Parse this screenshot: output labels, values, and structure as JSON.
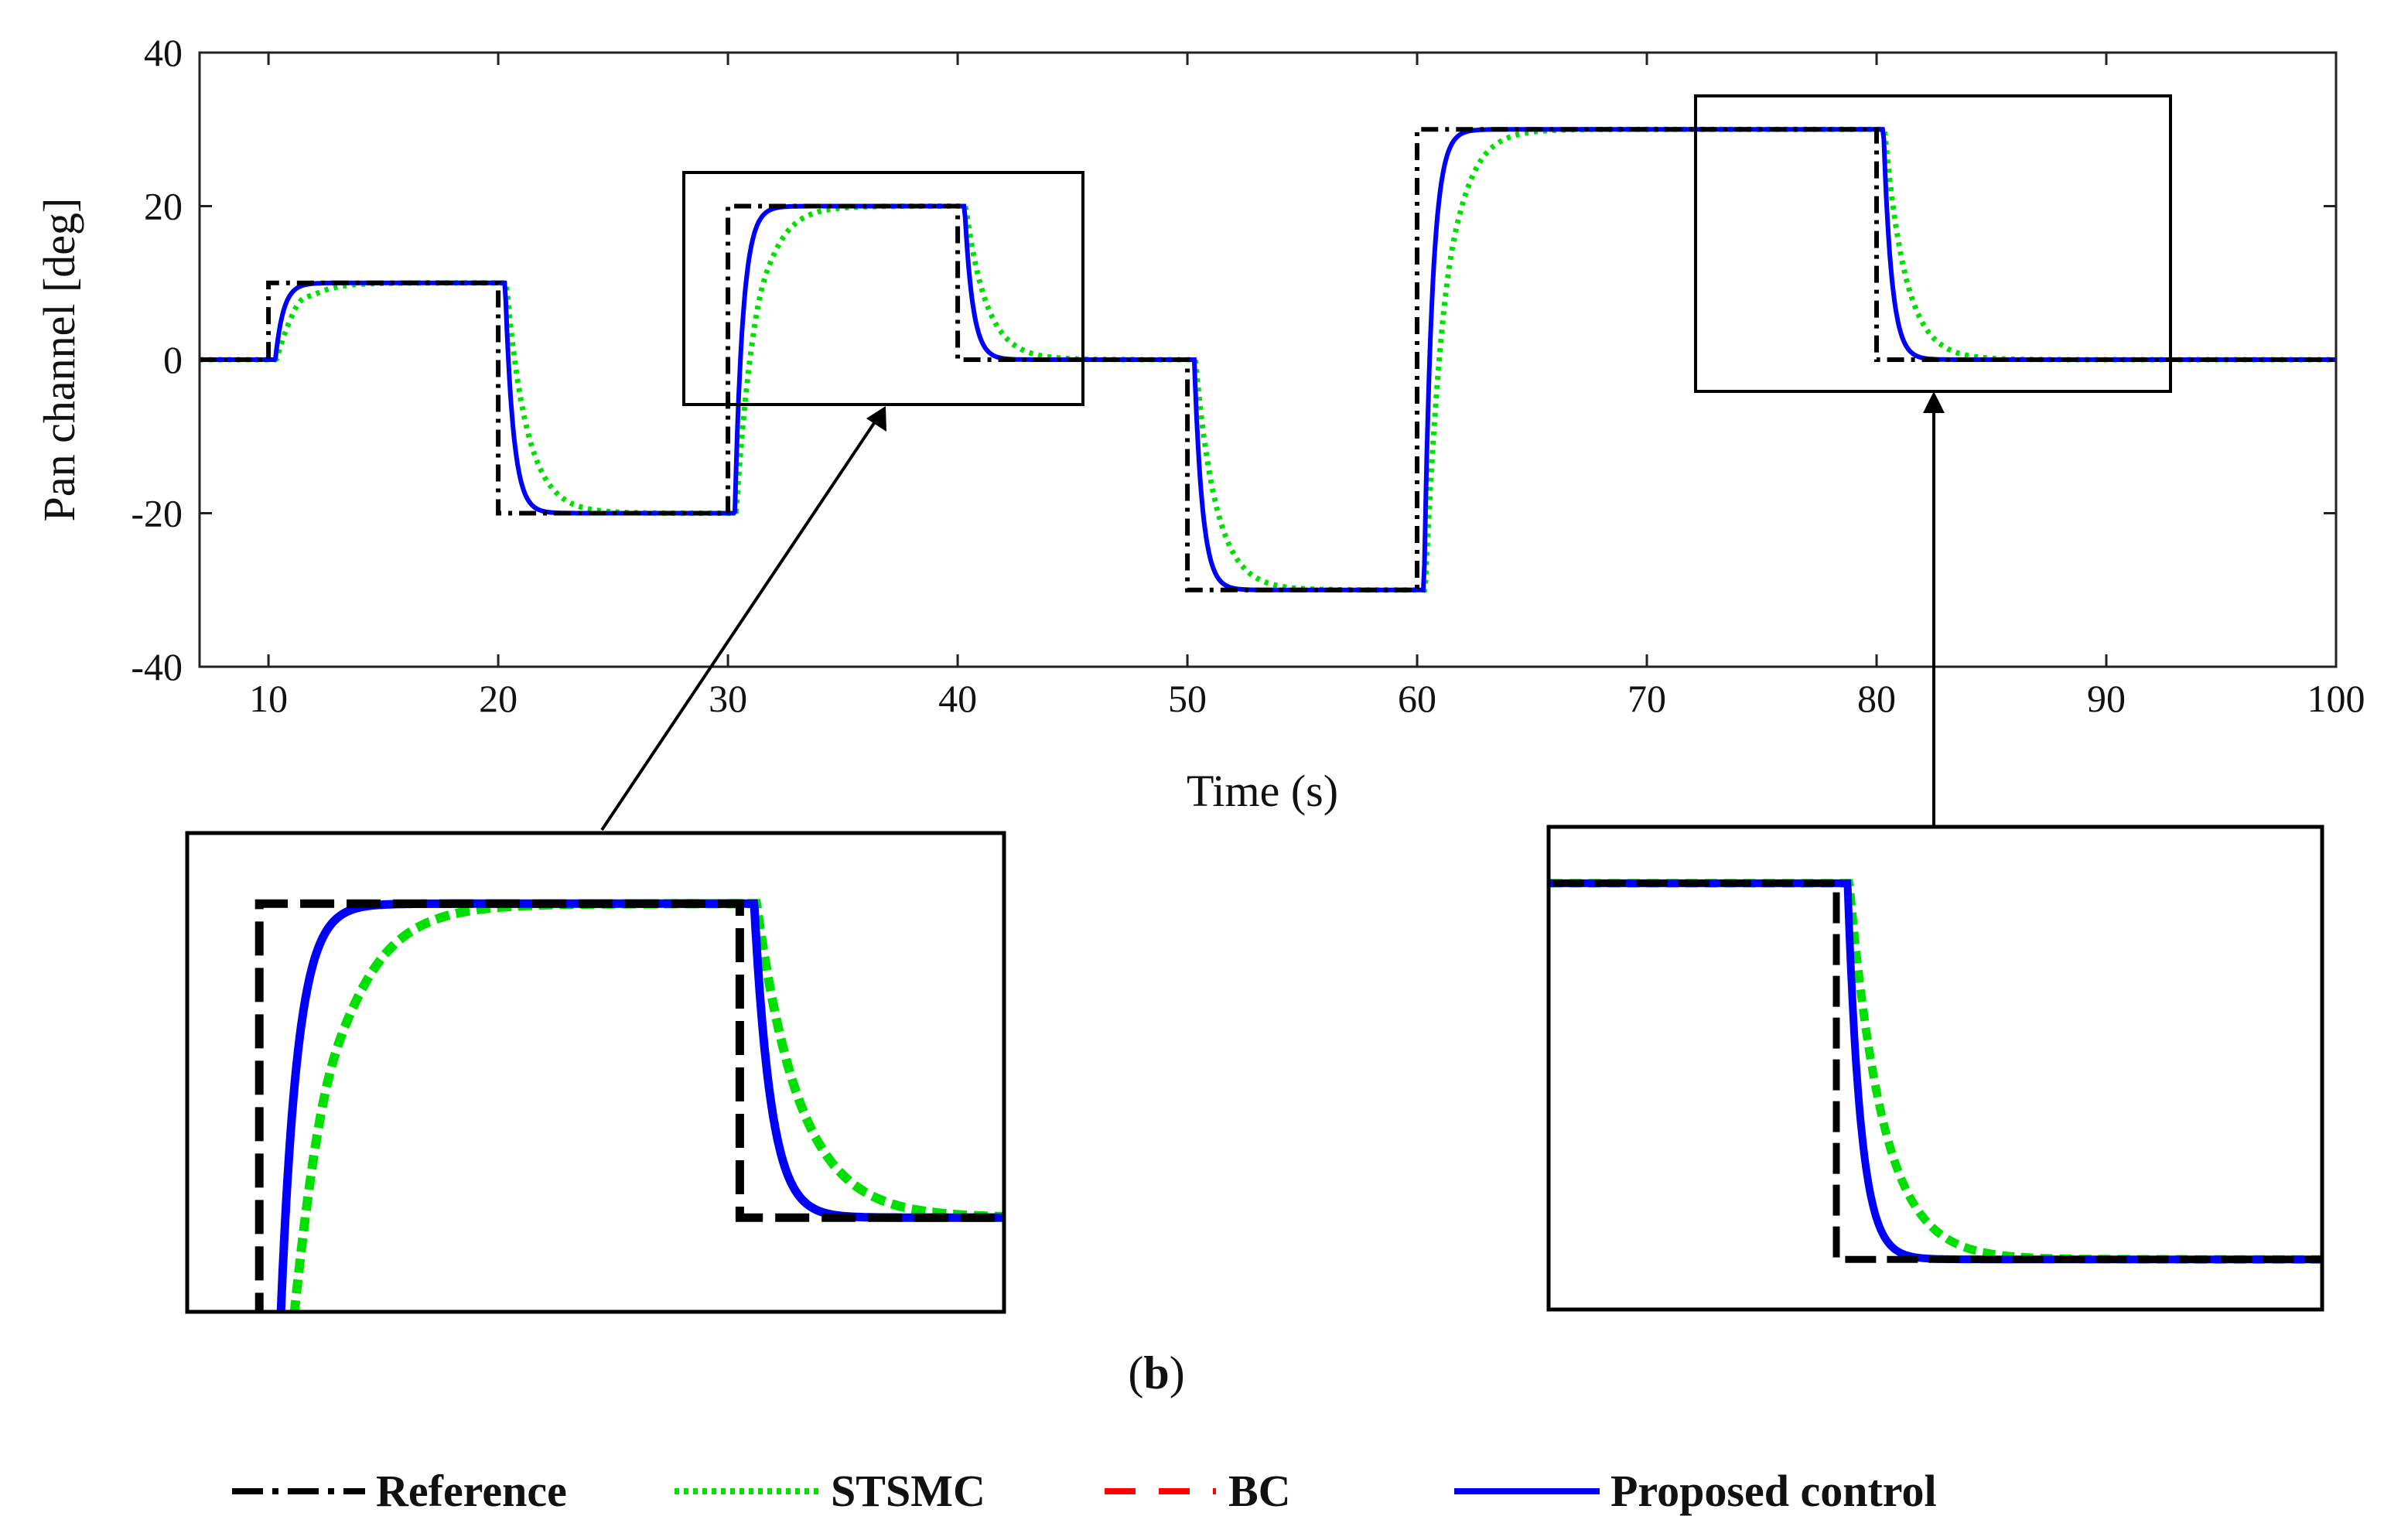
{
  "chart_data": {
    "type": "line",
    "title": "",
    "xlabel": "Time (s)",
    "ylabel": "Pan channel [deg]",
    "xlim": [
      7,
      100
    ],
    "ylim": [
      -40,
      40
    ],
    "x_ticks": [
      10,
      20,
      30,
      40,
      50,
      60,
      70,
      80,
      90,
      100
    ],
    "y_ticks": [
      -40,
      -20,
      0,
      20,
      40
    ],
    "caption_letter": "b",
    "caption": "(b)",
    "legend": [
      "Reference",
      "STSMC",
      "BC",
      "Proposed control"
    ],
    "reference_steps": [
      {
        "t": 7,
        "value": 0
      },
      {
        "t": 10,
        "value": 10
      },
      {
        "t": 20,
        "value": -20
      },
      {
        "t": 30,
        "value": 20
      },
      {
        "t": 40,
        "value": 0
      },
      {
        "t": 50,
        "value": -30
      },
      {
        "t": 60,
        "value": 30
      },
      {
        "t": 80,
        "value": 0
      }
    ],
    "series": [
      {
        "name": "Reference",
        "style": "dash-dot",
        "color": "#000000",
        "response": "step"
      },
      {
        "name": "STSMC",
        "style": "dotted",
        "color": "#00e000",
        "delay_s": 0.35,
        "time_constant_s": 0.9,
        "overshoot_deg": 0.8
      },
      {
        "name": "BC",
        "style": "dashed",
        "color": "#ff0000",
        "delay_s": 0.3,
        "time_constant_s": 0.35
      },
      {
        "name": "Proposed control",
        "style": "solid",
        "color": "#0000ff",
        "delay_s": 0.3,
        "time_constant_s": 0.35
      }
    ],
    "zoom_windows": [
      {
        "xlim": [
          28.5,
          45.5
        ],
        "ylim": [
          -6,
          24.5
        ],
        "inset": "left"
      },
      {
        "xlim": [
          72.3,
          93
        ],
        "ylim": [
          -4,
          34.5
        ],
        "inset": "right"
      }
    ]
  }
}
